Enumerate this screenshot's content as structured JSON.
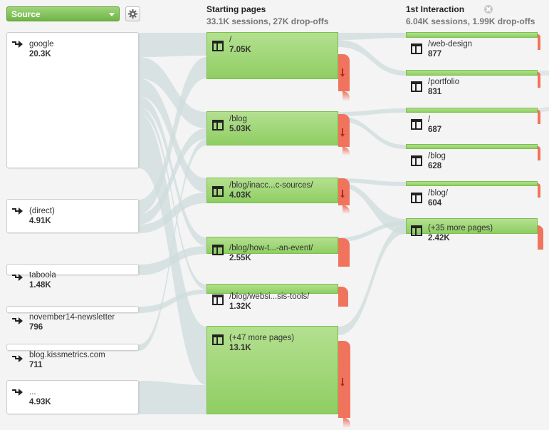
{
  "source_selector": {
    "label": "Source"
  },
  "settings": {
    "icon": "gear-icon"
  },
  "columns": {
    "starting": {
      "title": "Starting pages",
      "summary": "33.1K sessions, 27K drop-offs"
    },
    "interaction": {
      "title": "1st Interaction",
      "summary": "6.04K sessions, 1.99K drop-offs"
    }
  },
  "sources": [
    {
      "label": "google",
      "value": "20.3K"
    },
    {
      "label": "(direct)",
      "value": "4.91K"
    },
    {
      "label": "taboola",
      "value": "1.48K"
    },
    {
      "label": "november14-newsletter",
      "value": "796"
    },
    {
      "label": "blog.kissmetrics.com",
      "value": "711"
    },
    {
      "label": "...",
      "value": "4.93K"
    }
  ],
  "starting_pages": [
    {
      "label": "/",
      "value": "7.05K"
    },
    {
      "label": "/blog",
      "value": "5.03K"
    },
    {
      "label": "/blog/inacc...c-sources/",
      "value": "4.03K"
    },
    {
      "label": "/blog/how-t...-an-event/",
      "value": "2.55K"
    },
    {
      "label": "/blog/websi...sis-tools/",
      "value": "1.32K"
    },
    {
      "label": "(+47 more pages)",
      "value": "13.1K"
    }
  ],
  "interaction_pages": [
    {
      "label": "/web-design",
      "value": "877"
    },
    {
      "label": "/portfolio",
      "value": "831"
    },
    {
      "label": "/",
      "value": "687"
    },
    {
      "label": "/blog",
      "value": "628"
    },
    {
      "label": "/blog/",
      "value": "604"
    },
    {
      "label": "(+35 more pages)",
      "value": "2.42K"
    }
  ],
  "colors": {
    "node_green": "#9ed574",
    "dropoff_red": "#f0745d",
    "flow_gray": "#cfdcdc"
  }
}
